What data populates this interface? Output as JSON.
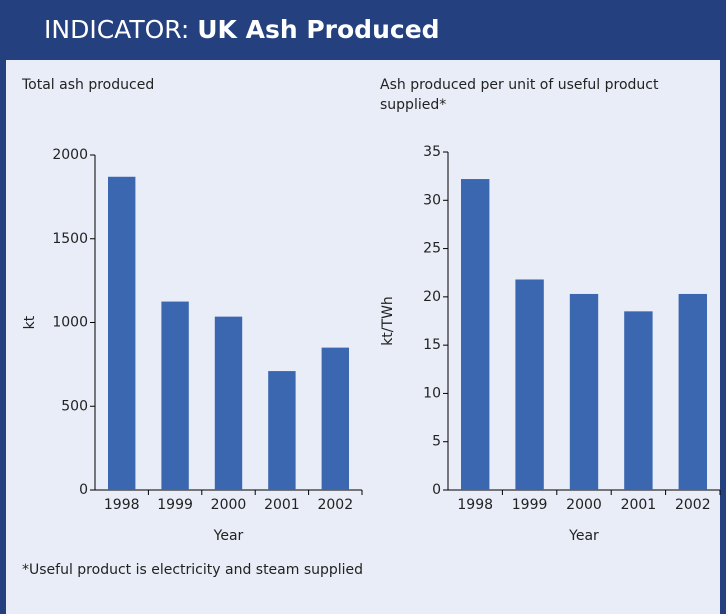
{
  "header": {
    "label": "INDICATOR:",
    "title": "UK Ash Produced"
  },
  "chart_data": [
    {
      "type": "bar",
      "title": "Total ash produced",
      "x_label": "Year",
      "y_label": "kt",
      "categories": [
        "1998",
        "1999",
        "2000",
        "2001",
        "2002"
      ],
      "values": [
        1870,
        1125,
        1035,
        710,
        850
      ],
      "color": "#3b67b1",
      "ylim": [
        0,
        2000
      ],
      "yticks": [
        0,
        500,
        1000,
        1500,
        2000
      ]
    },
    {
      "type": "bar",
      "title": "Ash produced per unit of useful product supplied*",
      "x_label": "Year",
      "y_label": "kt/TWh",
      "categories": [
        "1998",
        "1999",
        "2000",
        "2001",
        "2002"
      ],
      "values": [
        32.2,
        21.8,
        20.3,
        18.5,
        20.3
      ],
      "color": "#3b67b1",
      "ylim": [
        0,
        35
      ],
      "yticks": [
        0,
        5,
        10,
        15,
        20,
        25,
        30,
        35
      ]
    }
  ],
  "footnote": "*Useful product is electricity and steam supplied"
}
